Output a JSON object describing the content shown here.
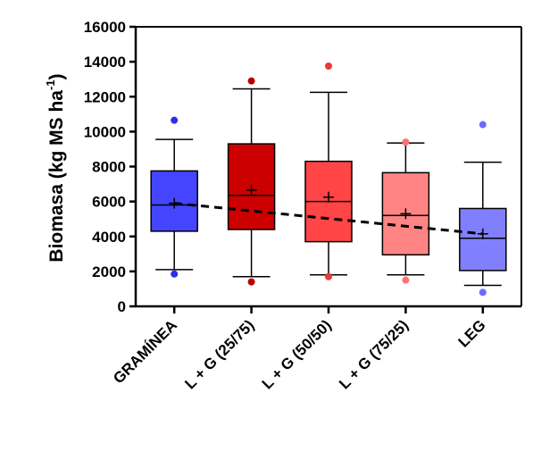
{
  "chart_data": {
    "type": "box",
    "title": "",
    "xlabel": "",
    "ylabel": "Biomasa (kg MS ha",
    "ylabel_superscript": "-1",
    "ylabel_close": ")",
    "ylim": [
      0,
      16000
    ],
    "yticks": [
      0,
      2000,
      4000,
      6000,
      8000,
      10000,
      12000,
      14000,
      16000
    ],
    "grid": false,
    "legend": "none",
    "trend_line": {
      "style": "dashed",
      "from": 5900,
      "to": 4150,
      "color": "#000000"
    },
    "boxes": [
      {
        "category": "GRAMÍNEA",
        "whisker_low": 2100,
        "q1": 4300,
        "median": 5800,
        "mean": 5900,
        "q3": 7750,
        "whisker_high": 9550,
        "outliers": [
          10650,
          1850
        ],
        "fill": "#4545ff",
        "outlier_color": "#2e2ee8"
      },
      {
        "category": "L + G (25/75)",
        "whisker_low": 1700,
        "q1": 4400,
        "median": 6350,
        "mean": 6650,
        "q3": 9300,
        "whisker_high": 12450,
        "outliers": [
          12900,
          1400
        ],
        "fill": "#cc0000",
        "outlier_color": "#b80000"
      },
      {
        "category": "L + G (50/50)",
        "whisker_low": 1800,
        "q1": 3700,
        "median": 6000,
        "mean": 6250,
        "q3": 8300,
        "whisker_high": 12250,
        "outliers": [
          13750,
          1700
        ],
        "fill": "#ff4545",
        "outlier_color": "#e83a3a"
      },
      {
        "category": "L + G (75/25)",
        "whisker_low": 1800,
        "q1": 2950,
        "median": 5200,
        "mean": 5300,
        "q3": 7650,
        "whisker_high": 9350,
        "outliers": [
          9400,
          1500
        ],
        "fill": "#ff8484",
        "outlier_color": "#ff7070"
      },
      {
        "category": "LEG",
        "whisker_low": 1200,
        "q1": 2050,
        "median": 3900,
        "mean": 4150,
        "q3": 5600,
        "whisker_high": 8250,
        "outliers": [
          10400,
          800
        ],
        "fill": "#8080ff",
        "outlier_color": "#6b6bff"
      }
    ]
  }
}
